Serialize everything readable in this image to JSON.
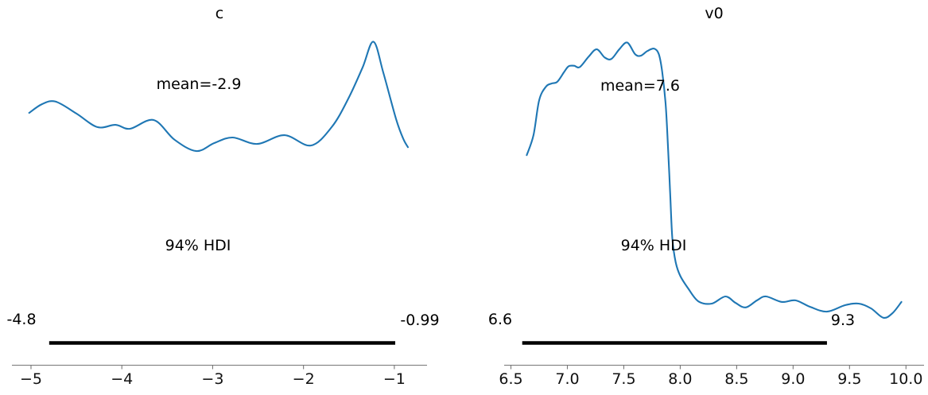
{
  "figure": {
    "background_color": "#ffffff",
    "curve_color": "#1f77b4",
    "hdi_bar_color": "#000000",
    "axis_color": "#767676",
    "tick_label_color": "#111111",
    "text_color": "#000000"
  },
  "chart_data": [
    {
      "type": "line",
      "subtype": "posterior-kde",
      "title": "c",
      "mean": -2.9,
      "mean_label": "mean=-2.9",
      "hdi_probability": 0.94,
      "hdi_label": "94% HDI",
      "hdi_interval": [
        -4.8,
        -0.99
      ],
      "hdi_lower_label": "-4.8",
      "hdi_upper_label": "-0.99",
      "xlim": [
        -5.21,
        -0.64
      ],
      "grid": false,
      "legend": "none",
      "y_axis": "hidden",
      "x_ticks": [
        -5,
        -4,
        -3,
        -2,
        -1
      ],
      "x_tick_labels": [
        "−5",
        "−4",
        "−3",
        "−2",
        "−1"
      ],
      "series": [
        {
          "name": "c-posterior-kde",
          "x": [
            -5.02,
            -4.88,
            -4.73,
            -4.5,
            -4.27,
            -4.07,
            -3.91,
            -3.65,
            -3.42,
            -3.18,
            -2.98,
            -2.78,
            -2.51,
            -2.21,
            -1.92,
            -1.69,
            -1.51,
            -1.35,
            -1.23,
            -1.12,
            -0.98,
            -0.9,
            -0.85
          ],
          "density_norm": [
            0.78,
            0.807,
            0.815,
            0.778,
            0.736,
            0.743,
            0.731,
            0.758,
            0.697,
            0.662,
            0.687,
            0.704,
            0.684,
            0.711,
            0.679,
            0.736,
            0.822,
            0.92,
            1.0,
            0.903,
            0.76,
            0.699,
            0.674
          ]
        }
      ]
    },
    {
      "type": "line",
      "subtype": "posterior-kde",
      "title": "v0",
      "mean": 7.6,
      "mean_label": "mean=7.6",
      "hdi_probability": 0.94,
      "hdi_label": "94% HDI",
      "hdi_interval": [
        6.6,
        9.3
      ],
      "hdi_lower_label": "6.6",
      "hdi_upper_label": "9.3",
      "xlim": [
        6.44,
        10.16
      ],
      "grid": false,
      "legend": "none",
      "y_axis": "hidden",
      "x_ticks": [
        6.5,
        7.0,
        7.5,
        8.0,
        8.5,
        9.0,
        9.5,
        10.0
      ],
      "x_tick_labels": [
        "6.5",
        "7.0",
        "7.5",
        "8.0",
        "8.5",
        "9.0",
        "9.5",
        "10.0"
      ],
      "series": [
        {
          "name": "v0-posterior-kde",
          "x": [
            6.64,
            6.7,
            6.75,
            6.81,
            6.86,
            6.91,
            6.97,
            7.01,
            7.06,
            7.11,
            7.19,
            7.26,
            7.33,
            7.39,
            7.46,
            7.53,
            7.6,
            7.65,
            7.71,
            7.77,
            7.81,
            7.84,
            7.87,
            7.89,
            7.91,
            7.93,
            7.96,
            8.0,
            8.07,
            8.16,
            8.28,
            8.4,
            8.49,
            8.58,
            8.68,
            8.76,
            8.9,
            9.02,
            9.15,
            9.3,
            9.46,
            9.58,
            9.69,
            9.8,
            9.88,
            9.96
          ],
          "density_norm": [
            0.651,
            0.713,
            0.821,
            0.863,
            0.873,
            0.878,
            0.908,
            0.926,
            0.928,
            0.924,
            0.957,
            0.979,
            0.954,
            0.949,
            0.979,
            1.0,
            0.964,
            0.959,
            0.974,
            0.981,
            0.964,
            0.91,
            0.811,
            0.688,
            0.541,
            0.393,
            0.319,
            0.277,
            0.238,
            0.198,
            0.191,
            0.213,
            0.193,
            0.179,
            0.201,
            0.213,
            0.196,
            0.201,
            0.181,
            0.166,
            0.186,
            0.191,
            0.176,
            0.147,
            0.161,
            0.196
          ]
        }
      ]
    }
  ]
}
